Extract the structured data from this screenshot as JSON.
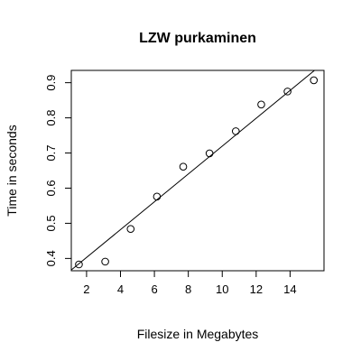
{
  "chart_data": {
    "type": "scatter",
    "title": "LZW purkaminen",
    "xlabel": "Filesize in Megabytes",
    "ylabel": "Time in seconds",
    "xlim": [
      1.1,
      16.0
    ],
    "ylim": [
      0.365,
      0.935
    ],
    "xticks": [
      2,
      4,
      6,
      8,
      10,
      12,
      14
    ],
    "yticks": [
      0.4,
      0.5,
      0.6,
      0.7,
      0.8,
      0.9
    ],
    "grid": false,
    "points": [
      {
        "x": 1.55,
        "y": 0.383
      },
      {
        "x": 3.1,
        "y": 0.391
      },
      {
        "x": 4.6,
        "y": 0.484
      },
      {
        "x": 6.15,
        "y": 0.576
      },
      {
        "x": 7.7,
        "y": 0.661
      },
      {
        "x": 9.25,
        "y": 0.699
      },
      {
        "x": 10.8,
        "y": 0.762
      },
      {
        "x": 12.3,
        "y": 0.838
      },
      {
        "x": 13.85,
        "y": 0.875
      },
      {
        "x": 15.4,
        "y": 0.907
      }
    ],
    "fit_line": {
      "intercept": 0.3236,
      "slope": 0.0396
    }
  }
}
